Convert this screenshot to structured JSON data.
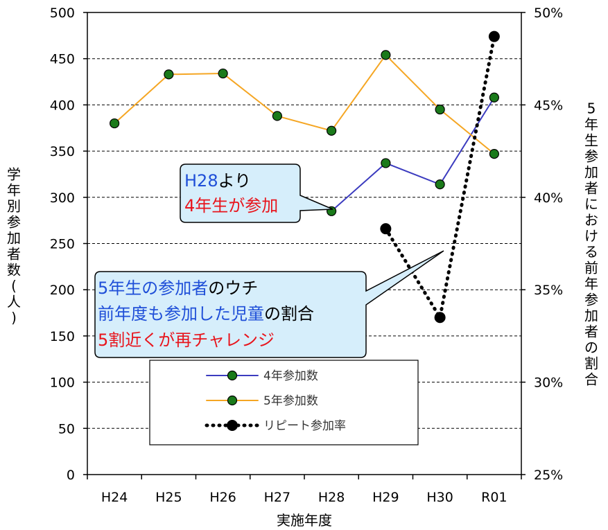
{
  "chart_data": {
    "type": "line",
    "categories": [
      "H24",
      "H25",
      "H26",
      "H27",
      "H28",
      "H29",
      "H30",
      "R01"
    ],
    "xlabel": "実施年度",
    "ylabel": "学年別参加者数(人)",
    "y2label": "5年生参加者における前年参加者の割合",
    "ylim": [
      0,
      500
    ],
    "yticks": [
      0,
      50,
      100,
      150,
      200,
      250,
      300,
      350,
      400,
      450,
      500
    ],
    "y2lim": [
      0.25,
      0.5
    ],
    "y2ticks": [
      "25%",
      "30%",
      "35%",
      "40%",
      "45%",
      "50%"
    ],
    "grid": "horizontal dashed",
    "series": [
      {
        "name": "4年参加数",
        "axis": "left",
        "color": "#3b3bbf",
        "values": [
          null,
          null,
          null,
          null,
          285,
          337,
          314,
          408
        ]
      },
      {
        "name": "5年参加数",
        "axis": "left",
        "color": "#f5a623",
        "values": [
          380,
          433,
          434,
          388,
          372,
          454,
          395,
          347
        ]
      },
      {
        "name": "リピート参加率",
        "axis": "right",
        "color": "#000000",
        "values": [
          null,
          null,
          null,
          null,
          null,
          0.383,
          0.335,
          0.487
        ]
      }
    ],
    "legend": {
      "placement": "bottom-center"
    },
    "callouts": [
      {
        "lines": [
          [
            {
              "t": "H28",
              "c": "#1f4fd8"
            },
            {
              "t": "より",
              "c": "#000000"
            }
          ],
          [
            {
              "t": "4年生が参加",
              "c": "#e8141c"
            }
          ]
        ]
      },
      {
        "lines": [
          [
            {
              "t": "5年生の参加者",
              "c": "#1f4fd8"
            },
            {
              "t": "のウチ",
              "c": "#000000"
            }
          ],
          [
            {
              "t": "前年度も参加した児童",
              "c": "#1f4fd8"
            },
            {
              "t": "の割合",
              "c": "#000000"
            }
          ],
          [
            {
              "t": "5割近くが再チャレンジ",
              "c": "#e8141c"
            }
          ]
        ]
      }
    ]
  },
  "colors": {
    "marker_fill": "#1a7a1a",
    "callout_fill": "#d6eefb",
    "grid": "#000000"
  }
}
